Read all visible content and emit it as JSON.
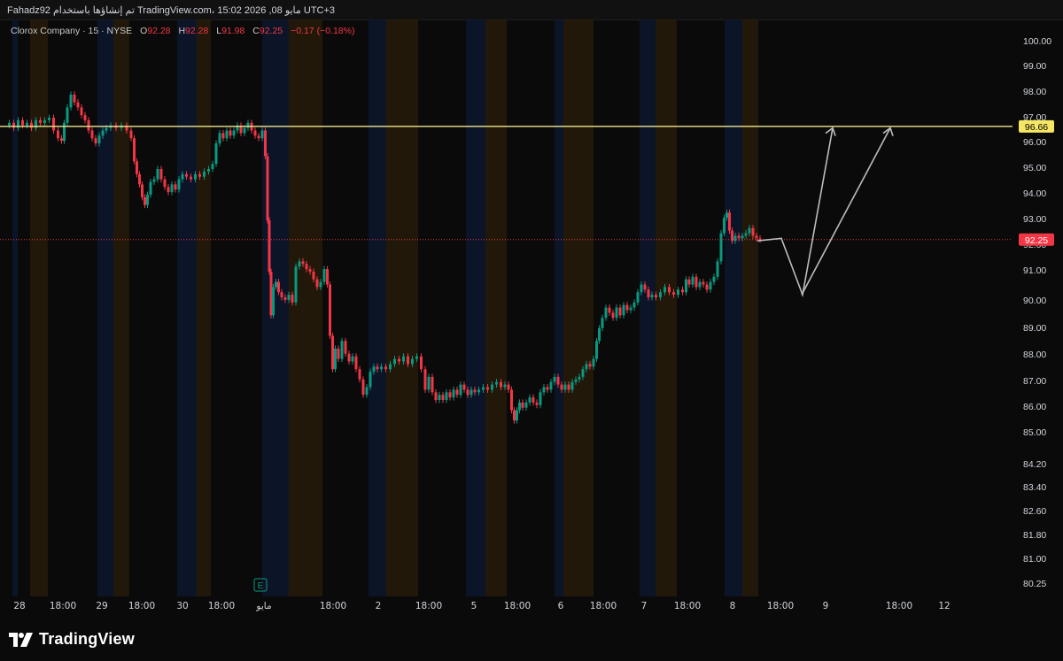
{
  "header": {
    "caption": "Fahadz92 تم إنشاؤها باستخدام TradingView.com، 15:02 2026 ,08 مايو UTC+3"
  },
  "legend": {
    "symbol": "Clorox Company · 15 · NYSE",
    "o_label": "O",
    "o": "92.28",
    "h_label": "H",
    "h": "92.28",
    "l_label": "L",
    "l": "91.98",
    "c_label": "C",
    "c": "92.25",
    "change": "−0.17 (−0.18%)"
  },
  "footer": {
    "brand": "TradingView"
  },
  "chart_data": {
    "type": "candlestick",
    "title": "Clorox Company · 15 · NYSE",
    "y_ticks": [
      "100.00",
      "99.00",
      "98.00",
      "97.00",
      "96.00",
      "95.00",
      "94.00",
      "93.00",
      "92.00",
      "91.00",
      "90.00",
      "89.00",
      "88.00",
      "87.00",
      "86.00",
      "85.00",
      "84.20",
      "83.40",
      "82.60",
      "81.80",
      "81.00",
      "80.25"
    ],
    "x_ticks": [
      "28",
      "18:00",
      "29",
      "18:00",
      "30",
      "18:00",
      "مايو",
      "18:00",
      "2",
      "18:00",
      "5",
      "18:00",
      "6",
      "18:00",
      "7",
      "18:00",
      "8",
      "18:00",
      "9",
      "18:00",
      "12"
    ],
    "price_series": [
      {
        "x": 0,
        "y": 96.7
      },
      {
        "x": 5,
        "y": 96.8
      },
      {
        "x": 10,
        "y": 96.6
      },
      {
        "x": 15,
        "y": 96.9
      },
      {
        "x": 20,
        "y": 96.7
      },
      {
        "x": 25,
        "y": 96.8
      },
      {
        "x": 30,
        "y": 96.6
      },
      {
        "x": 35,
        "y": 96.9
      },
      {
        "x": 40,
        "y": 96.8
      },
      {
        "x": 45,
        "y": 96.9
      },
      {
        "x": 50,
        "y": 97.0
      },
      {
        "x": 55,
        "y": 96.5
      },
      {
        "x": 60,
        "y": 96.2
      },
      {
        "x": 63,
        "y": 96.1
      },
      {
        "x": 66,
        "y": 96.8
      },
      {
        "x": 70,
        "y": 97.4
      },
      {
        "x": 74,
        "y": 97.9
      },
      {
        "x": 78,
        "y": 97.6
      },
      {
        "x": 82,
        "y": 97.4
      },
      {
        "x": 86,
        "y": 97.1
      },
      {
        "x": 90,
        "y": 96.9
      },
      {
        "x": 94,
        "y": 96.5
      },
      {
        "x": 98,
        "y": 96.2
      },
      {
        "x": 102,
        "y": 96.0
      },
      {
        "x": 106,
        "y": 96.3
      },
      {
        "x": 110,
        "y": 96.5
      },
      {
        "x": 114,
        "y": 96.6
      },
      {
        "x": 120,
        "y": 96.7
      },
      {
        "x": 126,
        "y": 96.6
      },
      {
        "x": 132,
        "y": 96.7
      },
      {
        "x": 138,
        "y": 96.5
      },
      {
        "x": 142,
        "y": 96.2
      },
      {
        "x": 145,
        "y": 95.3
      },
      {
        "x": 148,
        "y": 94.8
      },
      {
        "x": 151,
        "y": 94.4
      },
      {
        "x": 154,
        "y": 93.9
      },
      {
        "x": 157,
        "y": 93.6
      },
      {
        "x": 160,
        "y": 94.0
      },
      {
        "x": 164,
        "y": 94.5
      },
      {
        "x": 168,
        "y": 94.6
      },
      {
        "x": 172,
        "y": 95.0
      },
      {
        "x": 176,
        "y": 94.6
      },
      {
        "x": 180,
        "y": 94.3
      },
      {
        "x": 184,
        "y": 94.1
      },
      {
        "x": 188,
        "y": 94.4
      },
      {
        "x": 192,
        "y": 94.2
      },
      {
        "x": 196,
        "y": 94.6
      },
      {
        "x": 200,
        "y": 94.8
      },
      {
        "x": 205,
        "y": 94.7
      },
      {
        "x": 210,
        "y": 94.6
      },
      {
        "x": 215,
        "y": 94.8
      },
      {
        "x": 220,
        "y": 94.7
      },
      {
        "x": 225,
        "y": 94.9
      },
      {
        "x": 230,
        "y": 95.0
      },
      {
        "x": 234,
        "y": 95.2
      },
      {
        "x": 238,
        "y": 96.0
      },
      {
        "x": 242,
        "y": 96.4
      },
      {
        "x": 246,
        "y": 96.2
      },
      {
        "x": 250,
        "y": 96.5
      },
      {
        "x": 254,
        "y": 96.3
      },
      {
        "x": 258,
        "y": 96.5
      },
      {
        "x": 262,
        "y": 96.7
      },
      {
        "x": 266,
        "y": 96.4
      },
      {
        "x": 270,
        "y": 96.6
      },
      {
        "x": 274,
        "y": 96.8
      },
      {
        "x": 278,
        "y": 96.5
      },
      {
        "x": 282,
        "y": 96.3
      },
      {
        "x": 286,
        "y": 96.2
      },
      {
        "x": 290,
        "y": 96.5
      },
      {
        "x": 293,
        "y": 95.5
      },
      {
        "x": 295,
        "y": 93.0
      },
      {
        "x": 297,
        "y": 91.0
      },
      {
        "x": 299,
        "y": 89.3
      },
      {
        "x": 302,
        "y": 90.4
      },
      {
        "x": 305,
        "y": 90.6
      },
      {
        "x": 308,
        "y": 90.2
      },
      {
        "x": 312,
        "y": 90.0
      },
      {
        "x": 316,
        "y": 89.9
      },
      {
        "x": 320,
        "y": 90.1
      },
      {
        "x": 324,
        "y": 89.8
      },
      {
        "x": 328,
        "y": 91.2
      },
      {
        "x": 332,
        "y": 91.4
      },
      {
        "x": 336,
        "y": 91.3
      },
      {
        "x": 340,
        "y": 91.1
      },
      {
        "x": 344,
        "y": 91.0
      },
      {
        "x": 348,
        "y": 90.7
      },
      {
        "x": 352,
        "y": 90.4
      },
      {
        "x": 356,
        "y": 90.6
      },
      {
        "x": 360,
        "y": 91.1
      },
      {
        "x": 363,
        "y": 90.5
      },
      {
        "x": 366,
        "y": 88.5
      },
      {
        "x": 369,
        "y": 87.2
      },
      {
        "x": 372,
        "y": 88.0
      },
      {
        "x": 376,
        "y": 87.6
      },
      {
        "x": 380,
        "y": 88.3
      },
      {
        "x": 384,
        "y": 87.8
      },
      {
        "x": 388,
        "y": 87.5
      },
      {
        "x": 392,
        "y": 87.7
      },
      {
        "x": 396,
        "y": 87.2
      },
      {
        "x": 400,
        "y": 86.8
      },
      {
        "x": 404,
        "y": 86.2
      },
      {
        "x": 408,
        "y": 86.5
      },
      {
        "x": 412,
        "y": 87.1
      },
      {
        "x": 416,
        "y": 87.3
      },
      {
        "x": 420,
        "y": 87.2
      },
      {
        "x": 425,
        "y": 87.3
      },
      {
        "x": 430,
        "y": 87.2
      },
      {
        "x": 435,
        "y": 87.4
      },
      {
        "x": 440,
        "y": 87.6
      },
      {
        "x": 445,
        "y": 87.5
      },
      {
        "x": 450,
        "y": 87.7
      },
      {
        "x": 455,
        "y": 87.4
      },
      {
        "x": 460,
        "y": 87.6
      },
      {
        "x": 465,
        "y": 87.7
      },
      {
        "x": 470,
        "y": 87.2
      },
      {
        "x": 474,
        "y": 86.4
      },
      {
        "x": 478,
        "y": 86.9
      },
      {
        "x": 482,
        "y": 86.3
      },
      {
        "x": 486,
        "y": 86.0
      },
      {
        "x": 490,
        "y": 86.2
      },
      {
        "x": 494,
        "y": 86.0
      },
      {
        "x": 498,
        "y": 86.3
      },
      {
        "x": 502,
        "y": 86.1
      },
      {
        "x": 506,
        "y": 86.4
      },
      {
        "x": 510,
        "y": 86.2
      },
      {
        "x": 514,
        "y": 86.6
      },
      {
        "x": 518,
        "y": 86.4
      },
      {
        "x": 522,
        "y": 86.2
      },
      {
        "x": 526,
        "y": 86.4
      },
      {
        "x": 530,
        "y": 86.3
      },
      {
        "x": 535,
        "y": 86.4
      },
      {
        "x": 540,
        "y": 86.5
      },
      {
        "x": 545,
        "y": 86.4
      },
      {
        "x": 550,
        "y": 86.6
      },
      {
        "x": 555,
        "y": 86.7
      },
      {
        "x": 560,
        "y": 86.5
      },
      {
        "x": 564,
        "y": 86.6
      },
      {
        "x": 568,
        "y": 86.4
      },
      {
        "x": 571,
        "y": 85.6
      },
      {
        "x": 574,
        "y": 85.2
      },
      {
        "x": 577,
        "y": 85.6
      },
      {
        "x": 580,
        "y": 85.9
      },
      {
        "x": 584,
        "y": 85.7
      },
      {
        "x": 588,
        "y": 85.9
      },
      {
        "x": 592,
        "y": 86.1
      },
      {
        "x": 596,
        "y": 85.9
      },
      {
        "x": 600,
        "y": 85.8
      },
      {
        "x": 604,
        "y": 86.3
      },
      {
        "x": 608,
        "y": 86.5
      },
      {
        "x": 612,
        "y": 86.4
      },
      {
        "x": 616,
        "y": 86.7
      },
      {
        "x": 620,
        "y": 86.9
      },
      {
        "x": 624,
        "y": 86.6
      },
      {
        "x": 628,
        "y": 86.4
      },
      {
        "x": 632,
        "y": 86.6
      },
      {
        "x": 636,
        "y": 86.4
      },
      {
        "x": 640,
        "y": 86.7
      },
      {
        "x": 644,
        "y": 86.8
      },
      {
        "x": 648,
        "y": 86.9
      },
      {
        "x": 652,
        "y": 87.2
      },
      {
        "x": 656,
        "y": 87.4
      },
      {
        "x": 660,
        "y": 87.3
      },
      {
        "x": 664,
        "y": 87.6
      },
      {
        "x": 667,
        "y": 88.3
      },
      {
        "x": 670,
        "y": 88.8
      },
      {
        "x": 674,
        "y": 89.2
      },
      {
        "x": 678,
        "y": 89.6
      },
      {
        "x": 682,
        "y": 89.4
      },
      {
        "x": 686,
        "y": 89.2
      },
      {
        "x": 690,
        "y": 89.6
      },
      {
        "x": 694,
        "y": 89.3
      },
      {
        "x": 698,
        "y": 89.7
      },
      {
        "x": 702,
        "y": 89.5
      },
      {
        "x": 706,
        "y": 89.6
      },
      {
        "x": 710,
        "y": 89.8
      },
      {
        "x": 714,
        "y": 90.2
      },
      {
        "x": 718,
        "y": 90.5
      },
      {
        "x": 722,
        "y": 90.3
      },
      {
        "x": 726,
        "y": 90.0
      },
      {
        "x": 730,
        "y": 90.1
      },
      {
        "x": 735,
        "y": 90.0
      },
      {
        "x": 740,
        "y": 90.2
      },
      {
        "x": 745,
        "y": 90.4
      },
      {
        "x": 750,
        "y": 90.2
      },
      {
        "x": 755,
        "y": 90.1
      },
      {
        "x": 760,
        "y": 90.3
      },
      {
        "x": 765,
        "y": 90.2
      },
      {
        "x": 768,
        "y": 90.7
      },
      {
        "x": 772,
        "y": 90.5
      },
      {
        "x": 776,
        "y": 90.8
      },
      {
        "x": 780,
        "y": 90.4
      },
      {
        "x": 784,
        "y": 90.6
      },
      {
        "x": 788,
        "y": 90.5
      },
      {
        "x": 792,
        "y": 90.3
      },
      {
        "x": 796,
        "y": 90.6
      },
      {
        "x": 800,
        "y": 90.8
      },
      {
        "x": 804,
        "y": 91.4
      },
      {
        "x": 808,
        "y": 92.5
      },
      {
        "x": 811,
        "y": 93.1
      },
      {
        "x": 814,
        "y": 93.3
      },
      {
        "x": 817,
        "y": 92.6
      },
      {
        "x": 820,
        "y": 92.2
      },
      {
        "x": 824,
        "y": 92.4
      },
      {
        "x": 828,
        "y": 92.3
      },
      {
        "x": 832,
        "y": 92.4
      },
      {
        "x": 836,
        "y": 92.5
      },
      {
        "x": 840,
        "y": 92.7
      },
      {
        "x": 844,
        "y": 92.4
      },
      {
        "x": 848,
        "y": 92.3
      },
      {
        "x": 852,
        "y": 92.25
      }
    ],
    "horizontal_level": 96.66,
    "last_price": 92.25,
    "projection_path": [
      {
        "x": 855,
        "y": 92.2
      },
      {
        "x": 882,
        "y": 92.3
      },
      {
        "x": 906,
        "y": 90.1
      },
      {
        "x": 940,
        "y": 96.6
      },
      {
        "x": 905,
        "y": 90.1
      },
      {
        "x": 1005,
        "y": 96.6
      }
    ],
    "earnings_marker": "E",
    "colors": {
      "up": "#089981",
      "down": "#f23645",
      "level": "#f0e68c",
      "level_label_bg": "#f5e663",
      "last_price_bg": "#f23645",
      "background": "#0a0a0a",
      "projection": "#bdbdbd"
    }
  }
}
